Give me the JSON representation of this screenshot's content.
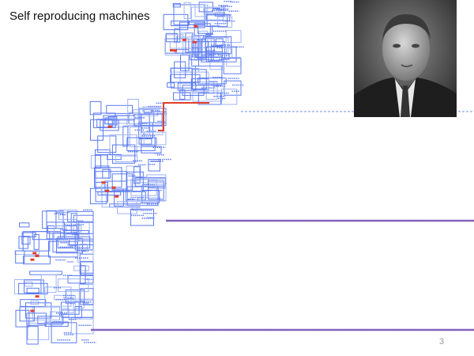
{
  "slide": {
    "title": "Self reproducing machines",
    "page_number": "3"
  },
  "figure": {
    "subject": "self-reproducing-automaton",
    "machine_count": 3,
    "colors": {
      "circuit": "#5b7bf0",
      "circuit_light": "#9fb4f5",
      "signal": "#e0402a",
      "tape": "#8a5fb0"
    }
  },
  "photo": {
    "subject": "portrait",
    "tone": "grayscale"
  }
}
